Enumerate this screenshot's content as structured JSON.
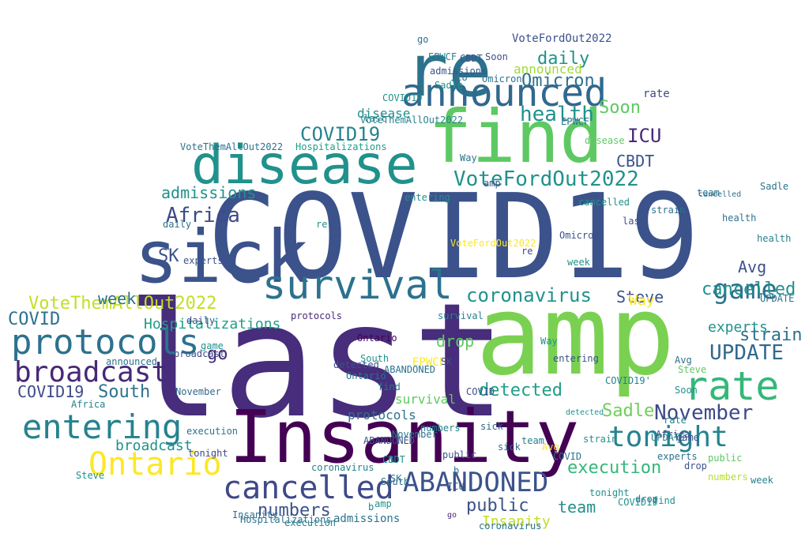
{
  "palette": {
    "deep_purple": "#440154",
    "indigo": "#472d7b",
    "navy": "#3b528b",
    "blue_teal": "#2c728e",
    "teal": "#21918c",
    "green_teal": "#28ae80",
    "green": "#5ec962",
    "lime": "#addc30",
    "yellow": "#fde725"
  },
  "words": [
    {
      "text": "COVID19",
      "color": "#3b528b"
    },
    {
      "text": "last",
      "color": "#472d7b"
    },
    {
      "text": "amp",
      "color": "#7ad151"
    },
    {
      "text": "Insanity",
      "color": "#440154"
    },
    {
      "text": "find",
      "color": "#5ec962"
    },
    {
      "text": "sick",
      "color": "#3b528b"
    },
    {
      "text": "disease",
      "color": "#21918c"
    },
    {
      "text": "re",
      "color": "#2c728e"
    },
    {
      "text": "announced",
      "color": "#31688e"
    },
    {
      "text": "survival",
      "color": "#2c728e"
    },
    {
      "text": "protocols",
      "color": "#2c728e"
    },
    {
      "text": "broadcast",
      "color": "#482878"
    },
    {
      "text": "entering",
      "color": "#26828e"
    },
    {
      "text": "cancelled",
      "color": "#3e4989"
    },
    {
      "text": "ABANDONED",
      "color": "#3b528b"
    },
    {
      "text": "rate",
      "color": "#35b779"
    },
    {
      "text": "Ontario",
      "color": "#fde725"
    },
    {
      "text": "tonight",
      "color": "#26828e"
    },
    {
      "text": "game",
      "color": "#2c728e"
    },
    {
      "text": "health",
      "color": "#21918c"
    },
    {
      "text": "VoteFordOut2022",
      "color": "#21918c"
    },
    {
      "text": "coronavirus",
      "color": "#21918c"
    },
    {
      "text": "Omicron",
      "color": "#2c728e"
    },
    {
      "text": "VoteThemAllOut2022",
      "color": "#c2df23"
    },
    {
      "text": "Africa",
      "color": "#3e4989"
    },
    {
      "text": "UPDATE",
      "color": "#31688e"
    },
    {
      "text": "November",
      "color": "#3e4989"
    },
    {
      "text": "detected",
      "color": "#1f9e89"
    },
    {
      "text": "Hospitalizations",
      "color": "#1f9e89"
    },
    {
      "text": "strain",
      "color": "#2c728e"
    },
    {
      "text": "execution",
      "color": "#35b779"
    },
    {
      "text": "admissions",
      "color": "#21918c"
    },
    {
      "text": "cancelled",
      "color": "#21918c"
    },
    {
      "text": "Soon",
      "color": "#5ec962"
    },
    {
      "text": "SK",
      "color": "#3b528b"
    },
    {
      "text": "ICU",
      "color": "#482878"
    },
    {
      "text": "CBDT",
      "color": "#3b528b"
    },
    {
      "text": "Avg",
      "color": "#3b528b"
    },
    {
      "text": "Steve",
      "color": "#3b528b"
    },
    {
      "text": "COVID19",
      "color": "#26828e"
    },
    {
      "text": "COVID19",
      "color": "#3e4989"
    },
    {
      "text": "COVID",
      "color": "#2c728e"
    },
    {
      "text": "week",
      "color": "#2c728e"
    },
    {
      "text": "South",
      "color": "#2c728e"
    },
    {
      "text": "Sadle",
      "color": "#6ece58"
    },
    {
      "text": "public",
      "color": "#3b528b"
    },
    {
      "text": "numbers",
      "color": "#3b528b"
    },
    {
      "text": "drop",
      "color": "#5ec962"
    },
    {
      "text": "EPWCF",
      "color": "#fde725"
    },
    {
      "text": "team",
      "color": "#21918c"
    },
    {
      "text": "daily",
      "color": "#21918c"
    },
    {
      "text": "experts",
      "color": "#21918c"
    },
    {
      "text": "Way",
      "color": "#fde725"
    },
    {
      "text": "go",
      "color": "#482878"
    },
    {
      "text": "Insanity",
      "color": "#bddf26"
    },
    {
      "text": "broadcast",
      "color": "#21918c"
    },
    {
      "text": "VoteThemAllOut2022",
      "color": "#2c728e"
    },
    {
      "text": "Omicron",
      "color": "#2c728e"
    },
    {
      "text": "announced",
      "color": "#a0da39"
    },
    {
      "text": "VoteFordOut2022",
      "color": "#3b528b"
    },
    {
      "text": "detected",
      "color": "#21918c"
    },
    {
      "text": "survival",
      "color": "#5ec962"
    },
    {
      "text": "protocols",
      "color": "#2c728e"
    },
    {
      "text": "Hospitalizations",
      "color": "#2c728e"
    },
    {
      "text": "ABANDONED",
      "color": "#3b528b"
    },
    {
      "text": "tonight",
      "color": "#21918c"
    },
    {
      "text": "execution",
      "color": "#26828e"
    },
    {
      "text": "admissions",
      "color": "#2c728e"
    },
    {
      "text": "public",
      "color": "#5ec962"
    },
    {
      "text": "numbers",
      "color": "#b5de2b"
    },
    {
      "text": "team",
      "color": "#2c728e"
    },
    {
      "text": "disease",
      "color": "#21918c"
    },
    {
      "text": "coronavirus",
      "color": "#2c728e"
    },
    {
      "text": "entering",
      "color": "#3b528b"
    },
    {
      "text": "game",
      "color": "#21918c"
    },
    {
      "text": "health",
      "color": "#2c728e"
    },
    {
      "text": "Africa",
      "color": "#26828e"
    },
    {
      "text": "rate",
      "color": "#3e4989"
    },
    {
      "text": "sick",
      "color": "#2c728e"
    },
    {
      "text": "strain",
      "color": "#2c728e"
    },
    {
      "text": "UPDATE",
      "color": "#26828e"
    },
    {
      "text": "cancelled",
      "color": "#2c728e"
    },
    {
      "text": "Sadle",
      "color": "#21918c"
    },
    {
      "text": "Ontario",
      "color": "#440154"
    },
    {
      "text": "experts",
      "color": "#2c728e"
    },
    {
      "text": "Avg",
      "color": "#fde725"
    },
    {
      "text": "Soon",
      "color": "#21918c"
    },
    {
      "text": "Steve",
      "color": "#5ec962"
    },
    {
      "text": "November",
      "color": "#31688e"
    },
    {
      "text": "drop",
      "color": "#3b528b"
    },
    {
      "text": "daily",
      "color": "#2c728e"
    },
    {
      "text": "week",
      "color": "#26828e"
    },
    {
      "text": "South",
      "color": "#2c728e"
    },
    {
      "text": "CBDT",
      "color": "#3b528b"
    },
    {
      "text": "ICU",
      "color": "#2c728e"
    },
    {
      "text": "EPWCF",
      "color": "#26828e"
    },
    {
      "text": "COVID19'",
      "color": "#26828e"
    },
    {
      "text": "COVID19",
      "color": "#21918c"
    },
    {
      "text": "COVID",
      "color": "#2c728e"
    },
    {
      "text": "last",
      "color": "#26828e"
    },
    {
      "text": "find",
      "color": "#21918c"
    },
    {
      "text": "amp",
      "color": "#3b528b"
    },
    {
      "text": "re",
      "color": "#3e4989"
    },
    {
      "text": "SK",
      "color": "#2c728e"
    },
    {
      "text": "go",
      "color": "#482878"
    },
    {
      "text": "b",
      "color": "#26828e"
    },
    {
      "text": "Way",
      "color": "#2c728e"
    },
    {
      "text": "sick",
      "color": "#31688e"
    },
    {
      "text": "VoteFordOut2022",
      "color": "#fde725"
    },
    {
      "text": "VoteThemAllOut2022",
      "color": "#26828e"
    },
    {
      "text": "Hospitalizations",
      "color": "#1f9e89"
    },
    {
      "text": "coronavirus",
      "color": "#26828e"
    },
    {
      "text": "ABANDONED",
      "color": "#2c728e"
    },
    {
      "text": "protocols",
      "color": "#482878"
    },
    {
      "text": "broadcast",
      "color": "#3b528b"
    },
    {
      "text": "announced",
      "color": "#2c728e"
    },
    {
      "text": "cancelled",
      "color": "#21918c"
    },
    {
      "text": "survival",
      "color": "#26828e"
    },
    {
      "text": "execution",
      "color": "#2c728e"
    },
    {
      "text": "admissions",
      "color": "#3b528b"
    },
    {
      "text": "Insanity",
      "color": "#2c728e"
    },
    {
      "text": "detected",
      "color": "#3b528b"
    },
    {
      "text": "entering",
      "color": "#21918c"
    },
    {
      "text": "tonight",
      "color": "#3e4989"
    },
    {
      "text": "Omicron",
      "color": "#3b528b"
    },
    {
      "text": "November",
      "color": "#2c728e"
    },
    {
      "text": "disease",
      "color": "#5ec962"
    },
    {
      "text": "numbers",
      "color": "#26828e"
    },
    {
      "text": "experts",
      "color": "#3b528b"
    },
    {
      "text": "Ontario",
      "color": "#2c728e"
    },
    {
      "text": "health",
      "color": "#26828e"
    },
    {
      "text": "public",
      "color": "#3b528b"
    },
    {
      "text": "strain",
      "color": "#21918c"
    },
    {
      "text": "UPDATE",
      "color": "#2c728e"
    },
    {
      "text": "Africa",
      "color": "#3b528b"
    },
    {
      "text": "Steve",
      "color": "#21918c"
    },
    {
      "text": "Sadle",
      "color": "#2c728e"
    },
    {
      "text": "game",
      "color": "#3b528b"
    },
    {
      "text": "team",
      "color": "#26828e"
    },
    {
      "text": "daily",
      "color": "#3b528b"
    },
    {
      "text": "week",
      "color": "#21918c"
    },
    {
      "text": "drop",
      "color": "#2c728e"
    },
    {
      "text": "rate",
      "color": "#26828e"
    },
    {
      "text": "Soon",
      "color": "#3b528b"
    },
    {
      "text": "South",
      "color": "#21918c"
    },
    {
      "text": "Avg",
      "color": "#2c728e"
    },
    {
      "text": "ICU",
      "color": "#3b528b"
    },
    {
      "text": "CBDT",
      "color": "#21918c"
    },
    {
      "text": "EPWCF",
      "color": "#2c728e"
    },
    {
      "text": "COVID19",
      "color": "#21918c"
    },
    {
      "text": "COVID",
      "color": "#3b528b"
    },
    {
      "text": "Way",
      "color": "#21918c"
    },
    {
      "text": "find",
      "color": "#2c728e"
    },
    {
      "text": "last",
      "color": "#3b528b"
    },
    {
      "text": "amp",
      "color": "#21918c"
    },
    {
      "text": "go",
      "color": "#2c728e"
    },
    {
      "text": "re",
      "color": "#21918c"
    },
    {
      "text": "SK",
      "color": "#3b528b"
    },
    {
      "text": "b",
      "color": "#2c728e"
    }
  ]
}
